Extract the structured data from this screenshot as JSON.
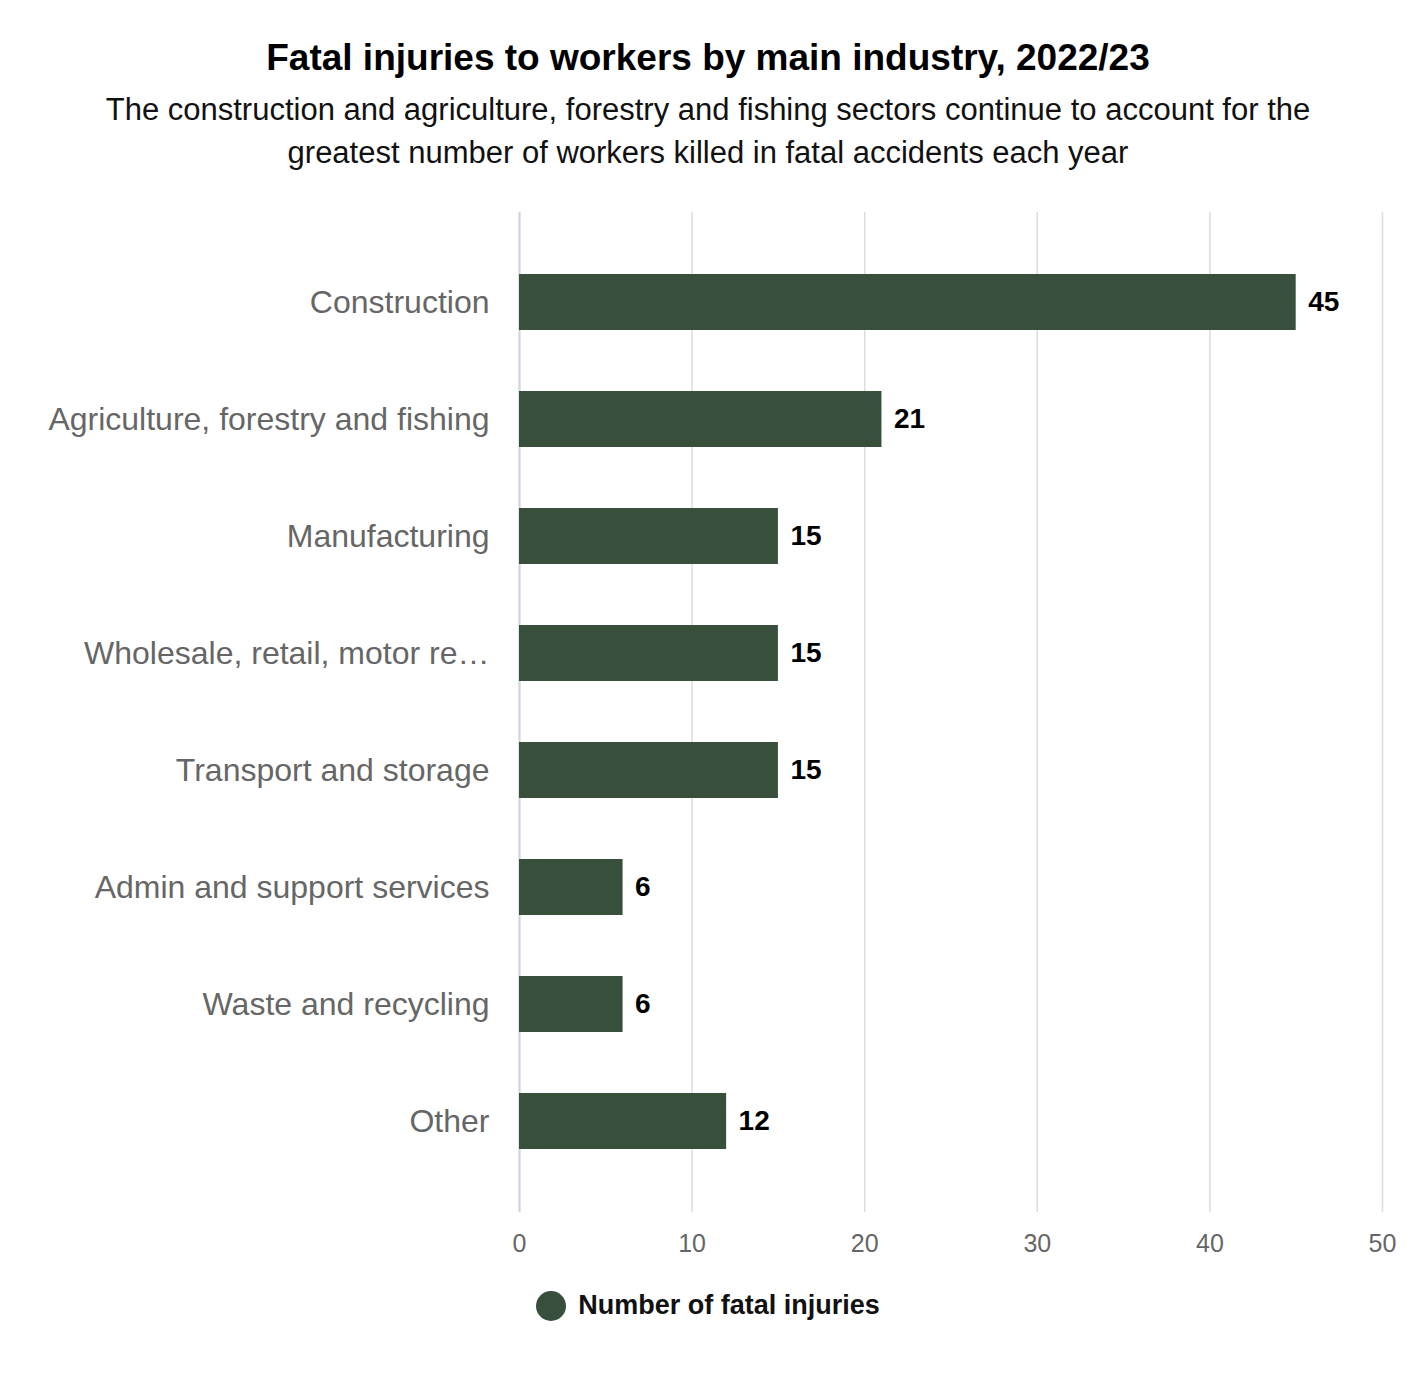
{
  "chart_data": {
    "type": "bar",
    "orientation": "horizontal",
    "title": "Fatal injuries to workers by main industry, 2022/23",
    "subtitle": "The construction and agriculture, forestry and fishing sectors continue to account for the greatest number of workers killed in fatal accidents each year",
    "categories": [
      "Construction",
      "Agriculture, forestry and fishing",
      "Manufacturing",
      "Wholesale, retail, motor re…",
      "Transport and storage",
      "Admin and support services",
      "Waste and recycling",
      "Other"
    ],
    "series": [
      {
        "name": "Number of fatal injuries",
        "color": "#374f3b",
        "values": [
          45,
          21,
          15,
          15,
          15,
          6,
          6,
          12
        ]
      }
    ],
    "xlim": [
      0,
      50
    ],
    "xticks": [
      0,
      10,
      20,
      30,
      40,
      50
    ],
    "grid": true,
    "data_labels": true,
    "legend": "bottom"
  }
}
